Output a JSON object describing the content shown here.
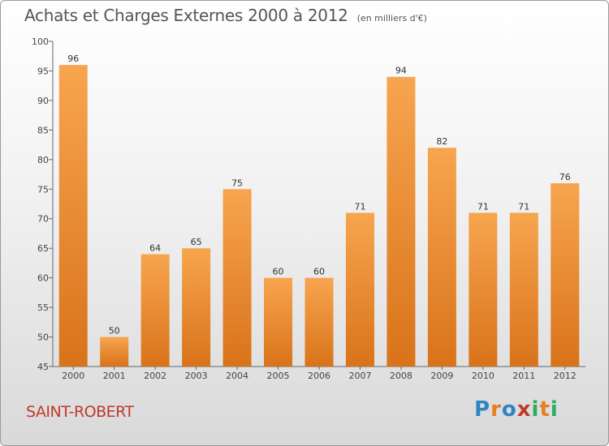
{
  "title": "Achats et Charges Externes 2000 à 2012",
  "unit_note": "(en milliers d'€)",
  "city": "SAINT-ROBERT",
  "logo": {
    "text": "Proxiti",
    "letters": [
      "P",
      "r",
      "o",
      "x",
      "i",
      "t",
      "i"
    ],
    "colors": [
      "#2e86c1",
      "#e67e22",
      "#2e86c1",
      "#c0392b",
      "#27ae60",
      "#e67e22",
      "#27ae60"
    ]
  },
  "colors": {
    "bar_top": "#f7a54f",
    "bar_bottom": "#d9731a",
    "city": "#c0392b"
  },
  "chart_data": {
    "type": "bar",
    "title": "Achats et Charges Externes 2000 à 2012",
    "subtitle": "(en milliers d'€)",
    "xlabel": "",
    "ylabel": "",
    "categories": [
      "2000",
      "2001",
      "2002",
      "2003",
      "2004",
      "2005",
      "2006",
      "2007",
      "2008",
      "2009",
      "2010",
      "2011",
      "2012"
    ],
    "values": [
      96,
      50,
      64,
      65,
      75,
      60,
      60,
      71,
      94,
      82,
      71,
      71,
      76
    ],
    "ylim": [
      45,
      100
    ],
    "yticks": [
      45,
      50,
      55,
      60,
      65,
      70,
      75,
      80,
      85,
      90,
      95,
      100
    ],
    "grid": false,
    "legend": "none"
  }
}
